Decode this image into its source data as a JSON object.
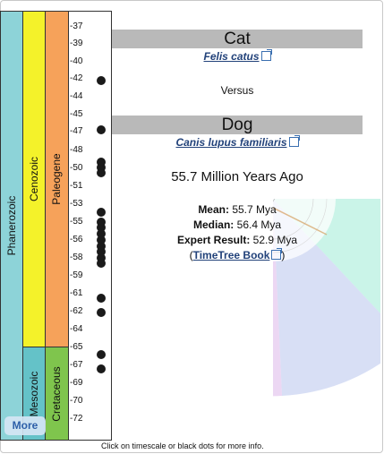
{
  "timescale": {
    "eon": "Phanerozoic",
    "eras": [
      "Cenozoic",
      "Mesozoic"
    ],
    "periods": [
      "Paleogene",
      "Cretaceous"
    ],
    "ticks": [
      "-37",
      "-39",
      "-40",
      "-42",
      "-44",
      "-45",
      "-47",
      "-48",
      "-50",
      "-51",
      "-53",
      "-55",
      "-56",
      "-58",
      "-59",
      "-61",
      "-62",
      "-64",
      "-65",
      "-67",
      "-69",
      "-70",
      "-72"
    ],
    "colors": {
      "phanerozoic": "#8dd3d8",
      "cenozoic": "#f4f22a",
      "mesozoic": "#64c2c8",
      "paleogene": "#f6a25a",
      "cretaceous": "#7fc54d"
    }
  },
  "species": {
    "taxon_a": {
      "common": "Cat",
      "scientific": "Felis catus"
    },
    "versus": "Versus",
    "taxon_b": {
      "common": "Dog",
      "scientific": "Canis lupus familiaris"
    }
  },
  "result": {
    "headline": "55.7 Million Years Ago",
    "mean_label": "Mean:",
    "mean_value": "55.7 Mya",
    "median_label": "Median:",
    "median_value": "56.4 Mya",
    "expert_label": "Expert Result:",
    "expert_value": "52.9 Mya",
    "book_prefix": "(",
    "book_link": "TimeTree Book",
    "book_suffix": ")"
  },
  "more_button": "More",
  "footer_note": "Click on timescale or black dots for more info."
}
